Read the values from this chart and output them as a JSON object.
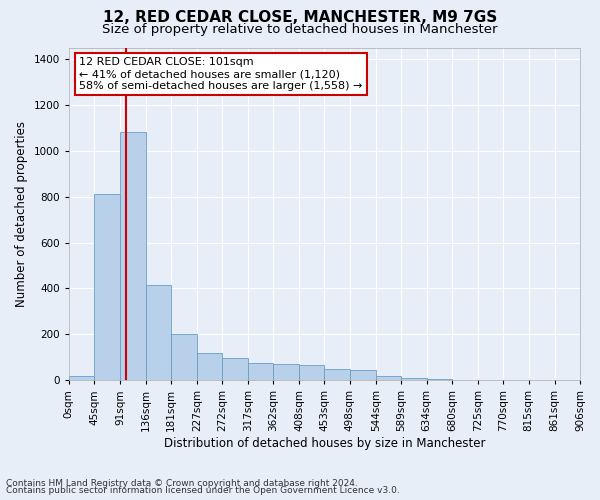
{
  "title": "12, RED CEDAR CLOSE, MANCHESTER, M9 7GS",
  "subtitle": "Size of property relative to detached houses in Manchester",
  "xlabel": "Distribution of detached houses by size in Manchester",
  "ylabel": "Number of detached properties",
  "footnote1": "Contains HM Land Registry data © Crown copyright and database right 2024.",
  "footnote2": "Contains public sector information licensed under the Open Government Licence v3.0.",
  "bin_edges": [
    0,
    45,
    91,
    136,
    181,
    227,
    272,
    317,
    362,
    408,
    453,
    498,
    544,
    589,
    634,
    680,
    725,
    770,
    815,
    861,
    906
  ],
  "bar_heights": [
    20,
    810,
    1080,
    415,
    200,
    120,
    95,
    75,
    70,
    65,
    50,
    45,
    20,
    8,
    4,
    2,
    1,
    1,
    1,
    1
  ],
  "bar_color": "#b8d0ea",
  "bar_edge_color": "#6a9ec5",
  "property_size": 101,
  "vline_color": "#cc0000",
  "annotation_line1": "12 RED CEDAR CLOSE: 101sqm",
  "annotation_line2": "← 41% of detached houses are smaller (1,120)",
  "annotation_line3": "58% of semi-detached houses are larger (1,558) →",
  "annotation_box_color": "#ffffff",
  "annotation_box_edge_color": "#cc0000",
  "ylim": [
    0,
    1450
  ],
  "yticks": [
    0,
    200,
    400,
    600,
    800,
    1000,
    1200,
    1400
  ],
  "background_color": "#e8eef8",
  "grid_color": "#ffffff",
  "title_fontsize": 11,
  "subtitle_fontsize": 9.5,
  "axis_label_fontsize": 8.5,
  "tick_fontsize": 7.5,
  "annotation_fontsize": 8,
  "footnote_fontsize": 6.5
}
